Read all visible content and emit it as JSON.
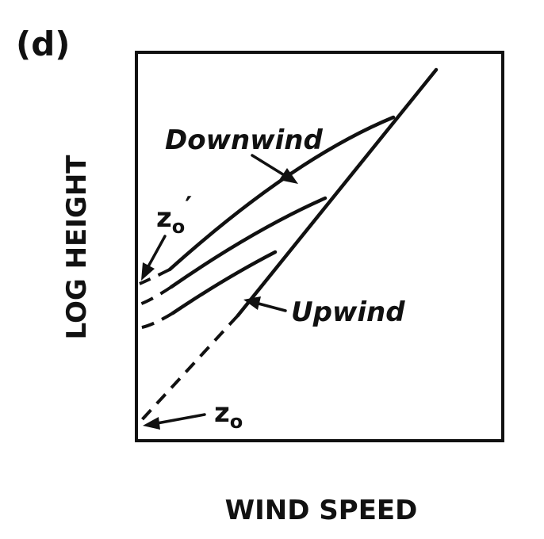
{
  "panel_label": "(d)",
  "axes": {
    "x_label": "WIND SPEED",
    "y_label": "LOG HEIGHT"
  },
  "curves": {
    "downwind_label": "Downwind",
    "upwind_label": "Upwind"
  },
  "roughness": {
    "z0_prime_main": "z",
    "z0_prime_sub": "o",
    "z0_prime_mark": "′",
    "z0_main": "z",
    "z0_sub": "o"
  }
}
